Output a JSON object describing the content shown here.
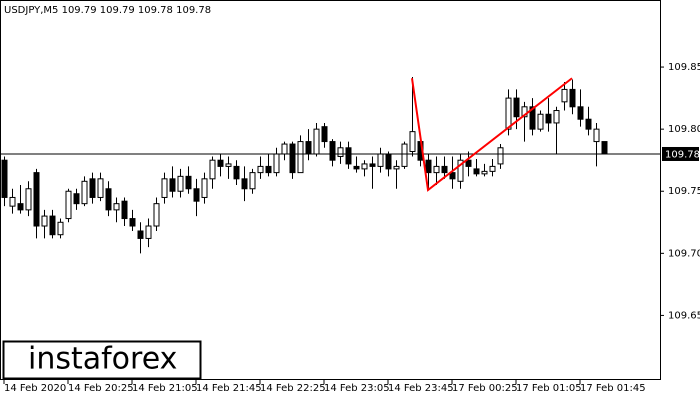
{
  "chart_data": {
    "type": "candlestick",
    "title": "USDJPY,M5  109.79 109.79 109.78 109.78",
    "watermark": "instaforex",
    "categories": [
      "14 Feb 2020",
      null,
      null,
      null,
      null,
      null,
      null,
      null,
      "14 Feb 20:25",
      null,
      null,
      null,
      null,
      null,
      null,
      null,
      "14 Feb 21:05",
      null,
      null,
      null,
      null,
      null,
      null,
      null,
      "14 Feb 21:45",
      null,
      null,
      null,
      null,
      null,
      null,
      null,
      "14 Feb 22:25",
      null,
      null,
      null,
      null,
      null,
      null,
      null,
      "14 Feb 23:05",
      null,
      null,
      null,
      null,
      null,
      null,
      null,
      "14 Feb 23:45",
      null,
      null,
      null,
      null,
      null,
      null,
      null,
      "17 Feb 00:25",
      null,
      null,
      null,
      null,
      null,
      null,
      null,
      "17 Feb 01:05",
      null,
      null,
      null,
      null,
      null,
      null,
      null,
      "17 Feb 01:45",
      null,
      null,
      null
    ],
    "open": [
      109.775,
      109.738,
      109.74,
      109.735,
      109.765,
      109.722,
      109.73,
      109.715,
      109.728,
      109.748,
      109.74,
      109.76,
      109.745,
      109.752,
      109.735,
      109.742,
      109.728,
      109.718,
      109.712,
      109.722,
      109.745,
      109.76,
      109.75,
      109.762,
      109.752,
      109.745,
      109.76,
      109.775,
      109.77,
      109.77,
      109.76,
      109.752,
      109.765,
      109.77,
      109.765,
      109.78,
      109.788,
      109.765,
      109.79,
      109.78,
      109.802,
      109.79,
      109.778,
      109.785,
      109.77,
      109.768,
      109.772,
      109.77,
      109.78,
      109.768,
      109.77,
      109.782,
      109.79,
      109.775,
      109.765,
      109.77,
      109.765,
      109.758,
      109.775,
      109.768,
      109.764,
      109.766,
      109.772,
      109.8,
      109.825,
      109.81,
      109.818,
      109.8,
      109.812,
      109.805,
      109.822,
      109.832,
      109.818,
      109.808,
      109.79,
      109.79
    ],
    "high": [
      109.778,
      109.752,
      109.755,
      109.758,
      109.768,
      109.735,
      109.735,
      109.728,
      109.752,
      109.752,
      109.762,
      109.765,
      109.765,
      109.758,
      109.745,
      109.745,
      109.735,
      109.725,
      109.728,
      109.745,
      109.765,
      109.77,
      109.768,
      109.77,
      109.76,
      109.765,
      109.778,
      109.78,
      109.778,
      109.775,
      109.77,
      109.768,
      109.778,
      109.78,
      109.785,
      109.79,
      109.79,
      109.795,
      109.8,
      109.805,
      109.805,
      109.792,
      109.79,
      109.79,
      109.778,
      109.775,
      109.778,
      109.785,
      109.782,
      109.775,
      109.79,
      109.842,
      109.795,
      109.78,
      109.778,
      109.778,
      109.778,
      109.78,
      109.782,
      109.776,
      109.772,
      109.776,
      109.788,
      109.832,
      109.832,
      109.822,
      109.825,
      109.815,
      109.825,
      109.818,
      109.838,
      109.84,
      109.832,
      109.818,
      109.805,
      109.79
    ],
    "low": [
      109.738,
      109.732,
      109.732,
      109.73,
      109.712,
      109.712,
      109.712,
      109.712,
      109.725,
      109.735,
      109.738,
      109.74,
      109.742,
      109.73,
      109.725,
      109.722,
      109.718,
      109.7,
      109.705,
      109.718,
      109.74,
      109.745,
      109.745,
      109.748,
      109.73,
      109.74,
      109.752,
      109.762,
      109.76,
      109.755,
      109.742,
      109.748,
      109.76,
      109.762,
      109.762,
      109.775,
      109.76,
      109.765,
      109.775,
      109.778,
      109.785,
      109.77,
      109.772,
      109.768,
      109.765,
      109.762,
      109.752,
      109.765,
      109.762,
      109.752,
      109.768,
      109.778,
      109.77,
      109.752,
      109.755,
      109.76,
      109.752,
      109.752,
      109.762,
      109.762,
      109.762,
      109.762,
      109.768,
      109.795,
      109.8,
      109.79,
      109.795,
      109.798,
      109.798,
      109.78,
      109.815,
      109.812,
      109.802,
      109.795,
      109.77,
      109.78
    ],
    "close": [
      109.745,
      109.745,
      109.735,
      109.752,
      109.722,
      109.73,
      109.715,
      109.725,
      109.75,
      109.74,
      109.758,
      109.745,
      109.76,
      109.735,
      109.74,
      109.728,
      109.722,
      109.712,
      109.722,
      109.74,
      109.76,
      109.75,
      109.762,
      109.752,
      109.742,
      109.76,
      109.775,
      109.77,
      109.772,
      109.76,
      109.752,
      109.765,
      109.77,
      109.765,
      109.78,
      109.788,
      109.765,
      109.79,
      109.78,
      109.8,
      109.79,
      109.775,
      109.785,
      109.772,
      109.768,
      109.772,
      109.77,
      109.78,
      109.768,
      109.77,
      109.788,
      109.798,
      109.775,
      109.765,
      109.77,
      109.765,
      109.76,
      109.775,
      109.77,
      109.764,
      109.766,
      109.77,
      109.785,
      109.825,
      109.81,
      109.818,
      109.8,
      109.812,
      109.805,
      109.815,
      109.832,
      109.818,
      109.808,
      109.8,
      109.8,
      109.78
    ],
    "up_color": "#ffffff",
    "down_color": "#000000",
    "current_price": 109.78,
    "pattern_line": {
      "color": "#ff0000",
      "x": [
        51,
        53,
        71
      ],
      "values": [
        109.841,
        109.751,
        109.841
      ]
    },
    "ylim": [
      109.598,
      109.904
    ],
    "yticks": [
      109.65,
      {
        "value": 109.7,
        "label": "109.70"
      },
      109.75,
      {
        "value": 109.8,
        "label": "109.80"
      },
      109.85
    ]
  }
}
